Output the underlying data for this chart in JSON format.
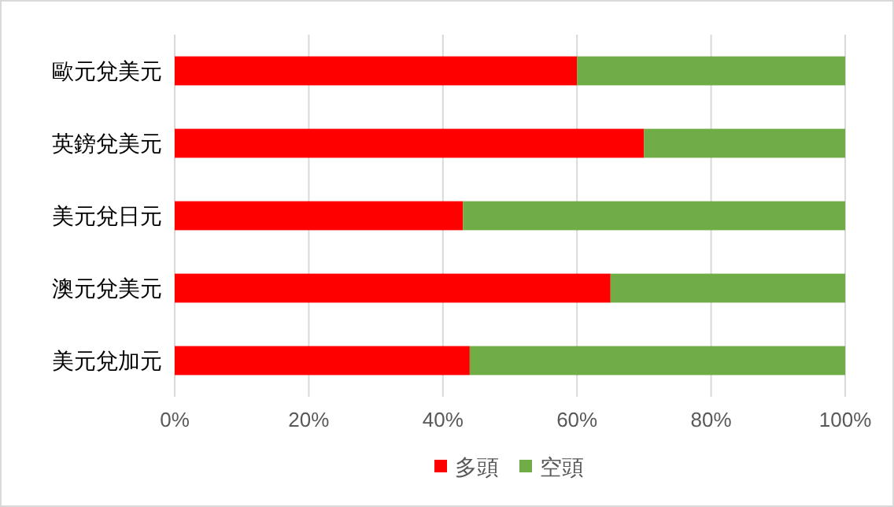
{
  "chart_data": {
    "type": "bar",
    "orientation": "horizontal",
    "stacked": true,
    "categories": [
      "歐元兌美元",
      "英鎊兌美元",
      "美元兌日元",
      "澳元兌美元",
      "美元兌加元"
    ],
    "series": [
      {
        "name": "多頭",
        "color": "#ff0000",
        "values": [
          60,
          70,
          43,
          65,
          44
        ]
      },
      {
        "name": "空頭",
        "color": "#70ad47",
        "values": [
          40,
          30,
          57,
          35,
          56
        ]
      }
    ],
    "xlim": [
      0,
      100
    ],
    "xticks": [
      {
        "value": 0,
        "label": "0%"
      },
      {
        "value": 20,
        "label": "20%"
      },
      {
        "value": 40,
        "label": "40%"
      },
      {
        "value": 60,
        "label": "60%"
      },
      {
        "value": 80,
        "label": "80%"
      },
      {
        "value": 100,
        "label": "100%"
      }
    ],
    "grid": "x",
    "legend": "bottom"
  }
}
